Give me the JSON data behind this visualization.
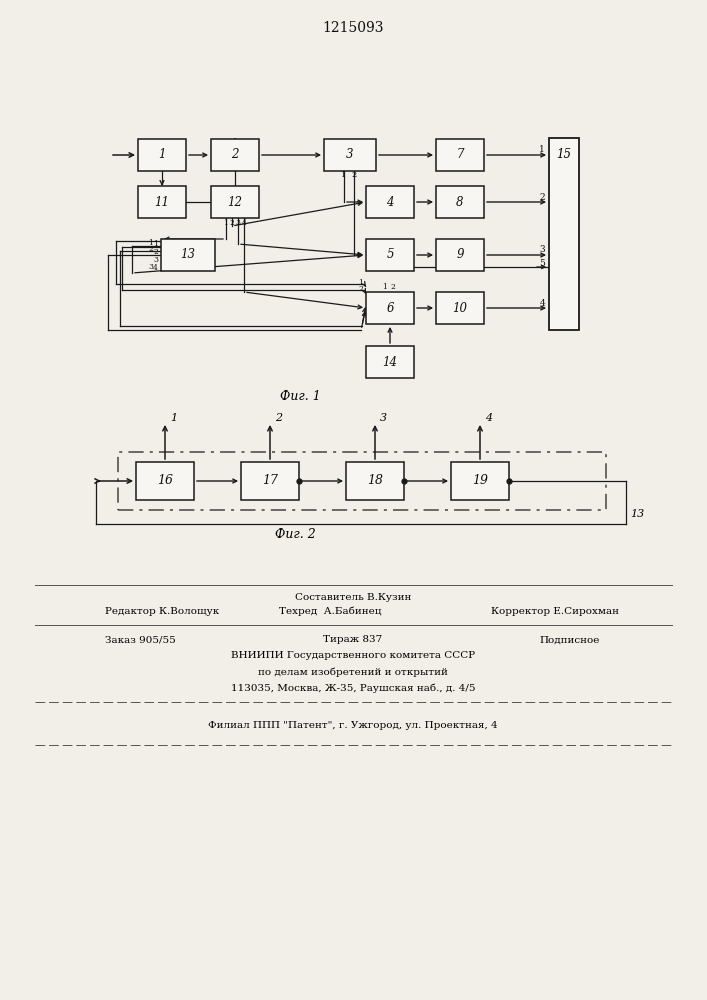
{
  "title": "1215093",
  "fig1_caption": "Фиг. 1",
  "fig2_caption": "Фиг. 2",
  "bg": "#f2efe8",
  "lc": "#1a1a1a",
  "bc": "#f8f6f2",
  "footer": {
    "sestavitel": "Составитель В.Кузин",
    "redaktor": "Редактор К.Волощук",
    "tehred": "Техред  А.Бабинец",
    "korrektor": "Корректор Е.Сирохман",
    "zakaz": "Заказ 905/55",
    "tirazh": "Тираж 837",
    "podpisnoe": "Подписное",
    "vniipn": "ВНИИПИ Государственного комитета СССР",
    "dela": "по делам изобретений и открытий",
    "addr": "113035, Москва, Ж-35, Раушская наб., д. 4/5",
    "filial": "Филиал ППП \"Патент\", г. Ужгород, ул. Проектная, 4"
  }
}
